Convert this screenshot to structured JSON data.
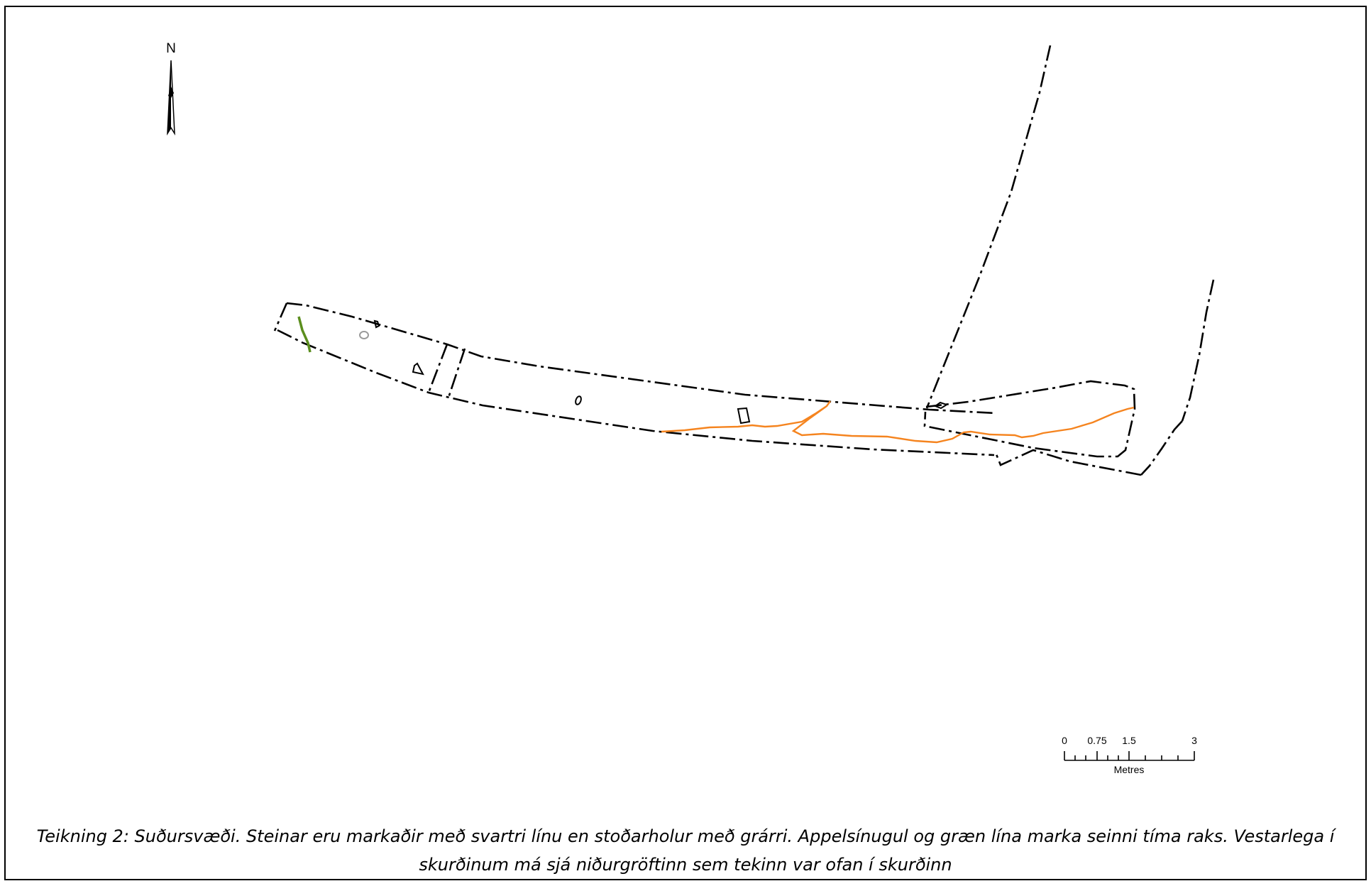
{
  "north_arrow": {
    "label": "N"
  },
  "scale_bar": {
    "ticks": [
      "0",
      "0.75",
      "1.5",
      "3"
    ],
    "unit": "Metres"
  },
  "caption": {
    "line1": "Teikning 2: Suðursvæði. Steinar eru markaðir með svartri línu en stoðarholur með grárri. Appelsínugul og græn lína marka seinni tíma raks. Vestarlega í",
    "line2": "skurðinum má sjá niðurgröftinn sem tekinn var ofan í skurðinn"
  },
  "colors": {
    "trench_outline": "#000000",
    "stones": "#000000",
    "postholes": "#9a9a9a",
    "orange_line": "#f5841f",
    "green_line": "#5b8e1e"
  },
  "icons": [
    "north-arrow-icon"
  ]
}
